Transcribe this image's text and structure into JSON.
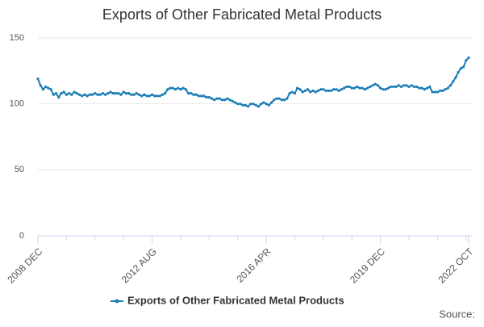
{
  "chart_data": {
    "type": "line",
    "title": "Exports of Other Fabricated Metal Products",
    "source": "Source:",
    "categories": [
      "2008 DEC",
      null,
      null,
      null,
      null,
      null,
      null,
      null,
      null,
      null,
      null,
      null,
      null,
      null,
      null,
      null,
      null,
      null,
      null,
      null,
      null,
      null,
      null,
      null,
      null,
      null,
      null,
      null,
      null,
      null,
      null,
      null,
      null,
      null,
      null,
      null,
      null,
      null,
      null,
      null,
      null,
      null,
      null,
      null,
      "2012 AUG",
      null,
      null,
      null,
      null,
      null,
      null,
      null,
      null,
      null,
      null,
      null,
      null,
      null,
      null,
      null,
      null,
      null,
      null,
      null,
      null,
      null,
      null,
      null,
      null,
      null,
      null,
      null,
      null,
      null,
      null,
      null,
      null,
      null,
      null,
      null,
      null,
      null,
      null,
      null,
      null,
      null,
      null,
      null,
      "2016 APR",
      null,
      null,
      null,
      null,
      null,
      null,
      null,
      null,
      null,
      null,
      null,
      null,
      null,
      null,
      null,
      null,
      null,
      null,
      null,
      null,
      null,
      null,
      null,
      null,
      null,
      null,
      null,
      null,
      null,
      null,
      null,
      null,
      null,
      null,
      null,
      null,
      null,
      null,
      null,
      null,
      null,
      null,
      null,
      "2019 DEC",
      null,
      null,
      null,
      null,
      null,
      null,
      null,
      null,
      null,
      null,
      null,
      null,
      null,
      null,
      null,
      null,
      null,
      null,
      null,
      null,
      null,
      null,
      null,
      null,
      null,
      null,
      null,
      null,
      null,
      null,
      null,
      null,
      null,
      "2022 OCT"
    ],
    "series": [
      {
        "name": "Exports of Other Fabricated Metal Products",
        "color": "#1a7db6",
        "values": [
          119,
          114,
          111,
          113,
          112,
          111,
          107,
          108,
          105,
          108,
          109,
          107,
          108,
          107,
          109,
          108,
          107,
          106,
          107,
          106,
          107,
          107,
          108,
          107,
          107,
          108,
          107,
          108,
          109,
          108,
          108,
          108,
          107,
          109,
          108,
          108,
          107,
          107,
          108,
          107,
          106,
          107,
          106,
          106,
          107,
          106,
          106,
          106,
          107,
          108,
          111,
          112,
          112,
          111,
          112,
          111,
          112,
          111,
          108,
          108,
          107,
          107,
          106,
          106,
          106,
          105,
          105,
          104,
          103,
          104,
          104,
          103,
          103,
          104,
          103,
          102,
          101,
          100,
          100,
          99,
          99,
          98,
          100,
          100,
          99,
          98,
          100,
          101,
          100,
          99,
          101,
          103,
          104,
          104,
          103,
          103,
          104,
          108,
          109,
          108,
          112,
          111,
          109,
          110,
          111,
          109,
          110,
          109,
          110,
          111,
          111,
          110,
          110,
          110,
          111,
          111,
          110,
          111,
          112,
          113,
          113,
          112,
          112,
          113,
          112,
          112,
          111,
          112,
          113,
          114,
          115,
          114,
          112,
          111,
          111,
          112,
          113,
          113,
          113,
          114,
          113,
          114,
          114,
          113,
          114,
          113,
          113,
          112,
          112,
          111,
          112,
          113,
          109,
          109,
          109,
          110,
          110,
          111,
          112,
          114,
          117,
          120,
          124,
          127,
          128,
          133,
          135
        ]
      }
    ],
    "ylim": [
      0,
      150
    ],
    "yticks": [
      0,
      50,
      100,
      150
    ],
    "grid": true
  }
}
